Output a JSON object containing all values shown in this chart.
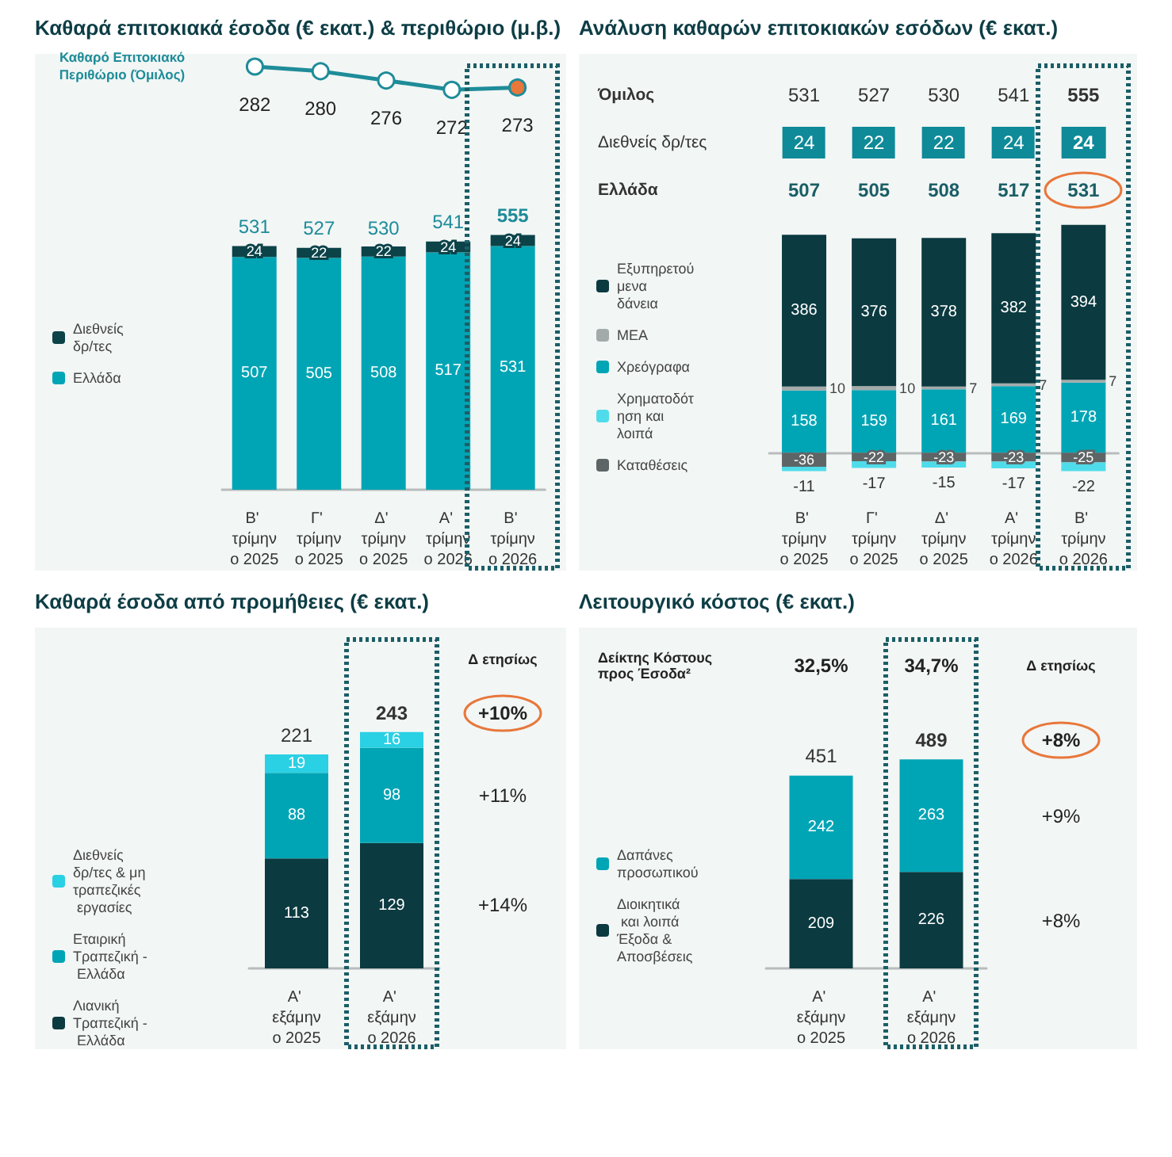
{
  "chart_data": [
    {
      "type": "line",
      "title": "Καθαρά επιτοκιακά έσοδα (€ εκατ.) & περιθώριο (μ.β.)",
      "categories": [
        "Β' τρίμηνο 2025",
        "Γ' τρίμηνο 2025",
        "Δ' τρίμηνο 2025",
        "Α' τρίμηνο 2026",
        "Β' τρίμηνο 2026"
      ],
      "tick_labels": false,
      "data_labels": true,
      "marker": "circle",
      "series": [
        {
          "name": "Καθαρό Επιτοκιακό Περιθώριο (Όμιλος)",
          "color": "#1e8c99",
          "values": [
            282,
            280,
            276,
            272,
            273
          ],
          "colors": [
            "#ffffff",
            "#ffffff",
            "#ffffff",
            "#ffffff",
            "#e8773a"
          ]
        }
      ]
    },
    {
      "type": "bar",
      "categories": [
        "Β' τρίμηνο 2025",
        "Γ' τρίμηνο 2025",
        "Δ' τρίμηνο 2025",
        "Α' τρίμηνο 2026",
        "Β' τρίμηνο 2026"
      ],
      "stacked": true,
      "tick_labels": "x",
      "data_labels": true,
      "legend": "left",
      "totals": [
        "531",
        "527",
        "530",
        "541",
        "555"
      ],
      "series": [
        {
          "name": "Ελλάδα",
          "color": "#00a5b5",
          "values": [
            507,
            505,
            508,
            517,
            531
          ]
        },
        {
          "name": "Διεθνείς δρ/τες",
          "color": "#0b4349",
          "values": [
            24,
            22,
            22,
            24,
            24
          ]
        }
      ]
    },
    {
      "type": "bar",
      "title": "Ανάλυση καθαρών επιτοκιακών εσόδων (€ εκατ.)",
      "categories": [
        "Β' τρίμηνο 2025",
        "Γ' τρίμηνο 2025",
        "Δ' τρίμηνο 2025",
        "Α' τρίμηνο 2026",
        "Β' τρίμηνο 2026"
      ],
      "stacked": true,
      "tick_labels": "x",
      "data_labels": true,
      "legend": "left",
      "annotations": [
        "Όμιλος",
        "531",
        "527",
        "530",
        "541",
        "555",
        "Διεθνείς δρ/τες",
        "24",
        "22",
        "22",
        "24",
        "24",
        "Ελλάδα",
        "507",
        "505",
        "508",
        "517",
        "531"
      ],
      "series": [
        {
          "name": "Χρεόγραφα",
          "color": "#00a5b5",
          "values": [
            158,
            159,
            161,
            169,
            178
          ]
        },
        {
          "name": "ΜΕΑ",
          "color": "#a3aaaa",
          "values": [
            10,
            10,
            7,
            7,
            7
          ]
        },
        {
          "name": "Εξυπηρετούμενα δάνεια",
          "color": "#0b3a40",
          "values": [
            386,
            376,
            378,
            382,
            394
          ]
        },
        {
          "name": "Καταθέσεις",
          "color": "#5e6566",
          "values": [
            -36,
            -22,
            -23,
            -23,
            -25
          ]
        },
        {
          "name": "Χρηματοδότηση και λοιπά",
          "color": "#4fdcea",
          "values": [
            -11,
            -17,
            -15,
            -17,
            -22
          ]
        }
      ]
    },
    {
      "type": "bar",
      "title": "Καθαρά έσοδα από προμήθειες (€ εκατ.)",
      "categories": [
        "Α' εξάμηνο 2025",
        "Α' εξάμηνο 2026"
      ],
      "stacked": true,
      "tick_labels": "x",
      "data_labels": true,
      "legend": "left",
      "totals": [
        "221",
        "243"
      ],
      "annotations": [
        "Δ ετησίως",
        "+10%",
        "+11%",
        "+14%"
      ],
      "series": [
        {
          "name": "Λιανική Τραπεζική - Ελλάδα",
          "color": "#0b3a40",
          "values": [
            113,
            129
          ]
        },
        {
          "name": "Εταιρική Τραπεζική - Ελλάδα",
          "color": "#00a5b5",
          "values": [
            88,
            98
          ]
        },
        {
          "name": "Διεθνείς δρ/τες & μη τραπεζικές εργασίες",
          "color": "#2ad0e4",
          "values": [
            19,
            16
          ]
        }
      ]
    },
    {
      "type": "bar",
      "title": "Λειτουργικό κόστος (€ εκατ.)",
      "categories": [
        "Α' εξάμηνο 2025",
        "Α' εξάμηνο 2026"
      ],
      "stacked": true,
      "tick_labels": "x",
      "data_labels": true,
      "legend": "left",
      "totals": [
        "451",
        "489"
      ],
      "annotations": [
        "Δείκτης Κόστους προς Έσοδα²",
        "32,5%",
        "34,7%",
        "Δ ετησίως",
        "+8%",
        "+9%",
        "+8%"
      ],
      "series": [
        {
          "name": "Διοικητικά και λοιπά Έξοδα & Αποσβέσεις",
          "color": "#0b3a40",
          "values": [
            209,
            226
          ]
        },
        {
          "name": "Δαπάνες προσωπικού",
          "color": "#00a5b5",
          "values": [
            242,
            263
          ]
        }
      ]
    }
  ]
}
